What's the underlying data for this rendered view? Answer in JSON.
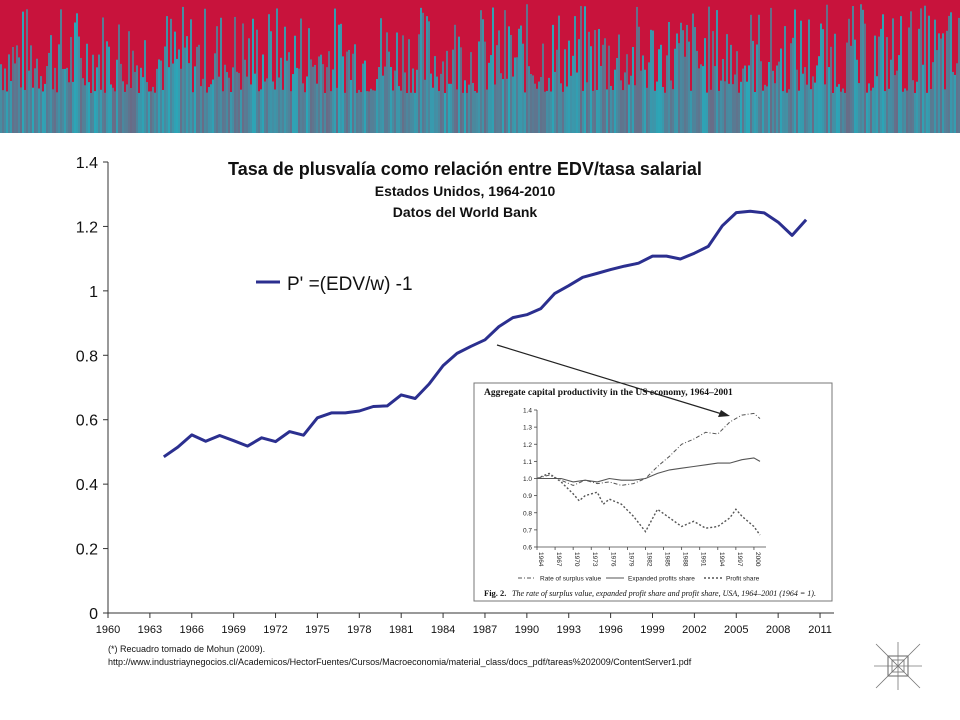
{
  "colors": {
    "banner_red": "#c8133c",
    "banner_teal": "#2aa7b8",
    "line": "#2b2f8f",
    "inset_line": "#555555"
  },
  "chart_data": [
    {
      "type": "line",
      "title": "Tasa de plusvalía como relación entre EDV/tasa salarial",
      "subtitle1": "Estados Unidos, 1964-2010",
      "subtitle2": "Datos del World Bank",
      "xlabel": "",
      "ylabel": "",
      "xlim": [
        1960,
        2012
      ],
      "ylim": [
        0,
        1.4
      ],
      "x_ticks": [
        "1960",
        "1963",
        "1966",
        "1969",
        "1972",
        "1975",
        "1978",
        "1981",
        "1984",
        "1987",
        "1990",
        "1993",
        "1996",
        "1999",
        "2002",
        "2005",
        "2008",
        "2011"
      ],
      "y_ticks": [
        "0",
        "0.2",
        "0.4",
        "0.6",
        "0.8",
        "1",
        "1.2",
        "1.4"
      ],
      "legend": "top-left",
      "grid": false,
      "series": [
        {
          "name": "P' =(EDV/w) -1",
          "x": [
            1964,
            1965,
            1966,
            1967,
            1968,
            1969,
            1970,
            1971,
            1972,
            1973,
            1974,
            1975,
            1976,
            1977,
            1978,
            1979,
            1980,
            1981,
            1982,
            1983,
            1984,
            1985,
            1986,
            1987,
            1988,
            1989,
            1990,
            1991,
            1992,
            1993,
            1994,
            1995,
            1996,
            1997,
            1998,
            1999,
            2000,
            2001,
            2002,
            2003,
            2004,
            2005,
            2006,
            2007,
            2008,
            2009,
            2010
          ],
          "y": [
            0.485,
            0.515,
            0.553,
            0.533,
            0.551,
            0.535,
            0.518,
            0.544,
            0.532,
            0.563,
            0.552,
            0.606,
            0.621,
            0.621,
            0.627,
            0.641,
            0.643,
            0.677,
            0.666,
            0.711,
            0.768,
            0.806,
            0.828,
            0.848,
            0.889,
            0.917,
            0.926,
            0.945,
            0.992,
            1.016,
            1.042,
            1.054,
            1.066,
            1.077,
            1.086,
            1.108,
            1.108,
            1.099,
            1.117,
            1.138,
            1.202,
            1.243,
            1.247,
            1.242,
            1.213,
            1.172,
            1.221
          ]
        }
      ]
    },
    {
      "type": "line",
      "title": "Aggregate capital productivity in the US economy, 1964–2001",
      "xlim": [
        1964,
        2002
      ],
      "ylim": [
        0.6,
        1.4
      ],
      "x_ticks": [
        "1964",
        "1967",
        "1970",
        "1973",
        "1976",
        "1979",
        "1982",
        "1985",
        "1988",
        "1991",
        "1994",
        "1997",
        "2000"
      ],
      "y_ticks": [
        "0.6",
        "0.7",
        "0.8",
        "0.9",
        "1.0",
        "1.1",
        "1.2",
        "1.3",
        "1.4"
      ],
      "legend": "bottom",
      "series": [
        {
          "name": "Rate of surplus value",
          "style": "dash-dot",
          "x": [
            1964,
            1966,
            1968,
            1970,
            1972,
            1974,
            1976,
            1978,
            1980,
            1982,
            1984,
            1986,
            1988,
            1990,
            1992,
            1994,
            1996,
            1998,
            2000,
            2001
          ],
          "y": [
            1.0,
            1.02,
            0.99,
            0.96,
            0.99,
            0.97,
            0.98,
            0.96,
            0.97,
            1.0,
            1.07,
            1.13,
            1.2,
            1.23,
            1.27,
            1.26,
            1.33,
            1.37,
            1.38,
            1.35
          ]
        },
        {
          "name": "Expanded profits share",
          "style": "solid",
          "x": [
            1964,
            1966,
            1968,
            1970,
            1972,
            1974,
            1976,
            1978,
            1980,
            1982,
            1984,
            1986,
            1988,
            1990,
            1992,
            1994,
            1996,
            1998,
            2000,
            2001
          ],
          "y": [
            1.0,
            1.0,
            1.0,
            0.98,
            0.99,
            0.98,
            1.0,
            0.99,
            0.99,
            1.0,
            1.03,
            1.05,
            1.06,
            1.07,
            1.08,
            1.09,
            1.09,
            1.11,
            1.12,
            1.1
          ]
        },
        {
          "name": "Profit share",
          "style": "dotted",
          "x": [
            1964,
            1966,
            1968,
            1970,
            1971,
            1972,
            1974,
            1975,
            1976,
            1978,
            1980,
            1982,
            1984,
            1986,
            1988,
            1990,
            1992,
            1994,
            1996,
            1997,
            1998,
            2000,
            2001
          ],
          "y": [
            1.0,
            1.03,
            0.98,
            0.91,
            0.87,
            0.9,
            0.92,
            0.85,
            0.88,
            0.85,
            0.78,
            0.69,
            0.82,
            0.77,
            0.72,
            0.75,
            0.71,
            0.72,
            0.77,
            0.82,
            0.78,
            0.72,
            0.67
          ]
        }
      ],
      "caption_label": "Fig. 2.",
      "caption_text": "The rate of surplus value, expanded profit share and profit share, USA, 1964–2001 (1964 = 1)."
    }
  ],
  "footnote": "(*)  Recuadro tomado de Mohun (2009).",
  "source_url": "http://www.industriaynegocios.cl/Academicos/HectorFuentes/Cursos/Macroeconomia/material_class/docs_pdf/tareas%202009/ContentServer1.pdf"
}
